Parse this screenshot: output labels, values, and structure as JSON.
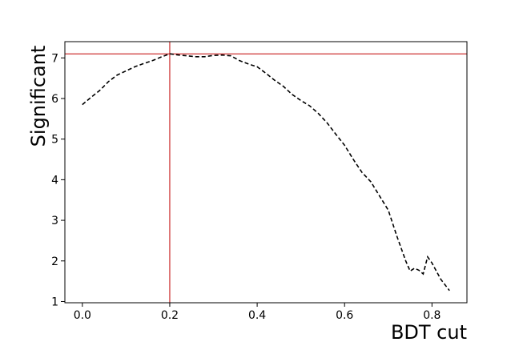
{
  "chart_data": {
    "type": "line",
    "xlabel": "BDT cut",
    "ylabel": "Significant",
    "xlim": [
      -0.04,
      0.88
    ],
    "ylim": [
      0.97,
      7.4
    ],
    "x_ticks": [
      0.0,
      0.2,
      0.4,
      0.6,
      0.8
    ],
    "x_tick_labels": [
      "0.0",
      "0.2",
      "0.4",
      "0.6",
      "0.8"
    ],
    "y_ticks": [
      1,
      2,
      3,
      4,
      5,
      6,
      7
    ],
    "y_tick_labels": [
      "1",
      "2",
      "3",
      "4",
      "5",
      "6",
      "7"
    ],
    "grid": false,
    "reference_lines": {
      "color": "#c00000",
      "vertical_x": 0.2,
      "horizontal_y": 7.1
    },
    "series": [
      {
        "style": "dashed",
        "color": "#000000",
        "x": [
          0.0,
          0.02,
          0.04,
          0.06,
          0.08,
          0.1,
          0.12,
          0.14,
          0.16,
          0.18,
          0.2,
          0.22,
          0.24,
          0.26,
          0.28,
          0.3,
          0.32,
          0.34,
          0.36,
          0.38,
          0.4,
          0.42,
          0.44,
          0.46,
          0.48,
          0.5,
          0.52,
          0.54,
          0.56,
          0.58,
          0.6,
          0.62,
          0.64,
          0.66,
          0.68,
          0.7,
          0.72,
          0.74,
          0.75,
          0.76,
          0.77,
          0.78,
          0.79,
          0.8,
          0.82,
          0.84
        ],
        "y": [
          5.85,
          6.03,
          6.2,
          6.42,
          6.58,
          6.68,
          6.78,
          6.86,
          6.93,
          7.02,
          7.1,
          7.07,
          7.05,
          7.03,
          7.03,
          7.06,
          7.07,
          7.05,
          6.93,
          6.85,
          6.78,
          6.62,
          6.45,
          6.3,
          6.1,
          5.95,
          5.82,
          5.63,
          5.4,
          5.12,
          4.85,
          4.5,
          4.18,
          3.95,
          3.6,
          3.25,
          2.6,
          2.0,
          1.75,
          1.82,
          1.77,
          1.68,
          2.1,
          1.95,
          1.55,
          1.27
        ]
      }
    ]
  }
}
